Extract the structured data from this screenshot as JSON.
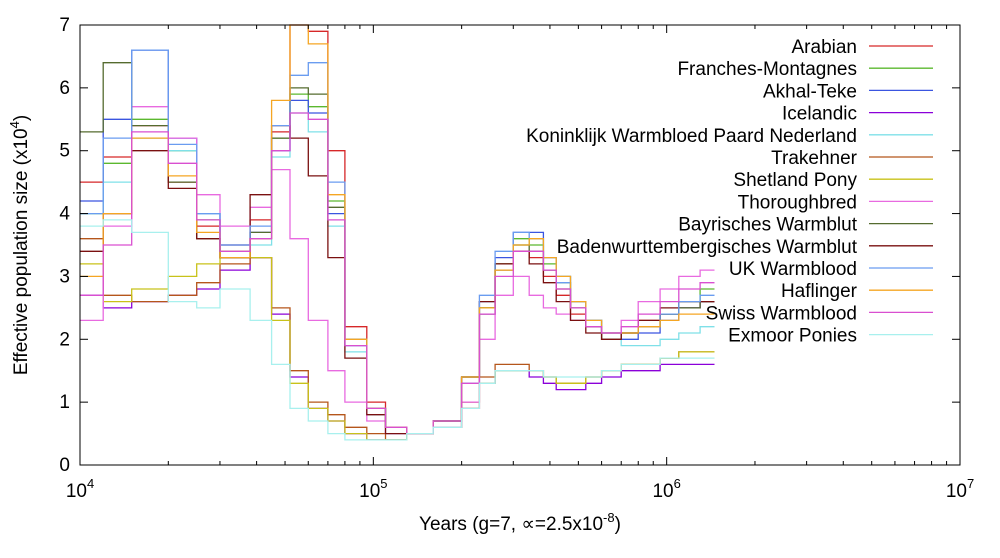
{
  "chart_data": {
    "type": "line",
    "title": "",
    "xlabel": "Years (g=7, ∝=2.5x10",
    "xlabel_exp": "-8",
    "xlabel_tail": ")",
    "ylabel": "Effective population size (x10",
    "ylabel_exp": "4",
    "ylabel_tail": ")",
    "x_scale": "log",
    "xlim": [
      10000,
      10000000
    ],
    "ylim": [
      0,
      7
    ],
    "x_ticks": [
      {
        "value": 10000,
        "base": "10",
        "exp": "4"
      },
      {
        "value": 100000,
        "base": "10",
        "exp": "5"
      },
      {
        "value": 1000000,
        "base": "10",
        "exp": "6"
      },
      {
        "value": 10000000,
        "base": "10",
        "exp": "7"
      }
    ],
    "y_ticks": [
      0,
      1,
      2,
      3,
      4,
      5,
      6,
      7
    ],
    "legend_position": "top-right",
    "grid": false,
    "series": [
      {
        "name": "Arabian",
        "color": "#d62728",
        "x": [
          10000,
          12000,
          15000,
          20000,
          25000,
          30000,
          38000,
          45000,
          52000,
          60000,
          70000,
          80000,
          95000,
          110000,
          130000,
          160000,
          200000,
          230000,
          260000,
          300000,
          340000,
          380000,
          420000,
          470000,
          530000,
          600000,
          700000,
          800000,
          950000,
          1100000,
          1300000
        ],
        "y": [
          4.5,
          4.9,
          5.4,
          4.5,
          3.8,
          3.5,
          3.9,
          5.3,
          7.0,
          6.9,
          5.0,
          2.2,
          1.0,
          0.6,
          0.5,
          0.7,
          1.4,
          2.4,
          3.1,
          3.4,
          3.3,
          3.0,
          2.7,
          2.4,
          2.2,
          2.0,
          2.1,
          2.3,
          2.4,
          2.5,
          2.6
        ]
      },
      {
        "name": "Franches-Montagnes",
        "color": "#5bb82f",
        "x": [
          10000,
          12000,
          15000,
          20000,
          25000,
          30000,
          38000,
          45000,
          52000,
          60000,
          70000,
          80000,
          95000,
          110000,
          130000,
          160000,
          200000,
          230000,
          260000,
          300000,
          340000,
          380000,
          420000,
          470000,
          530000,
          600000,
          700000,
          800000,
          950000,
          1100000,
          1300000
        ],
        "y": [
          4.0,
          4.8,
          5.5,
          5.0,
          3.9,
          3.4,
          3.6,
          5.2,
          5.9,
          5.7,
          4.2,
          2.0,
          0.9,
          0.6,
          0.5,
          0.7,
          1.4,
          2.5,
          3.2,
          3.6,
          3.5,
          3.2,
          2.9,
          2.6,
          2.3,
          2.1,
          2.1,
          2.2,
          2.4,
          2.6,
          2.8
        ]
      },
      {
        "name": "Akhal-Teke",
        "color": "#3a55e0",
        "x": [
          10000,
          12000,
          15000,
          20000,
          25000,
          30000,
          38000,
          45000,
          52000,
          60000,
          70000,
          80000,
          95000,
          110000,
          130000,
          160000,
          200000,
          230000,
          260000,
          300000,
          340000,
          380000,
          420000,
          470000,
          530000,
          600000,
          700000,
          800000,
          950000,
          1100000,
          1300000
        ],
        "y": [
          4.2,
          5.5,
          6.6,
          5.2,
          4.0,
          3.5,
          3.7,
          5.0,
          5.8,
          5.6,
          4.0,
          1.9,
          0.9,
          0.6,
          0.5,
          0.7,
          1.3,
          2.6,
          3.3,
          3.7,
          3.7,
          3.3,
          3.0,
          2.6,
          2.3,
          2.1,
          2.0,
          2.1,
          2.3,
          2.5,
          2.6
        ]
      },
      {
        "name": "Icelandic",
        "color": "#8b00d9",
        "x": [
          10000,
          12000,
          15000,
          20000,
          25000,
          30000,
          38000,
          45000,
          52000,
          60000,
          70000,
          80000,
          95000,
          110000,
          130000,
          160000,
          200000,
          230000,
          260000,
          300000,
          340000,
          380000,
          420000,
          470000,
          530000,
          600000,
          700000,
          800000,
          950000,
          1100000,
          1300000
        ],
        "y": [
          2.7,
          2.5,
          2.6,
          2.7,
          2.8,
          3.1,
          3.3,
          2.4,
          1.4,
          0.9,
          0.7,
          0.5,
          0.4,
          0.4,
          0.5,
          0.6,
          0.9,
          1.3,
          1.5,
          1.5,
          1.4,
          1.3,
          1.2,
          1.2,
          1.3,
          1.4,
          1.5,
          1.5,
          1.6,
          1.6,
          1.6
        ]
      },
      {
        "name": "Koninklijk Warmbloed Paard Nederland",
        "color": "#7fe0e8",
        "x": [
          10000,
          12000,
          15000,
          20000,
          25000,
          30000,
          38000,
          45000,
          52000,
          60000,
          70000,
          80000,
          95000,
          110000,
          130000,
          160000,
          200000,
          230000,
          260000,
          300000,
          340000,
          380000,
          420000,
          470000,
          530000,
          600000,
          700000,
          800000,
          950000,
          1100000,
          1300000
        ],
        "y": [
          4.0,
          4.5,
          5.2,
          5.0,
          4.0,
          3.3,
          3.5,
          4.9,
          5.6,
          5.3,
          3.8,
          1.8,
          0.8,
          0.5,
          0.5,
          0.7,
          1.3,
          2.4,
          3.1,
          3.5,
          3.6,
          3.3,
          3.0,
          2.6,
          2.3,
          2.0,
          1.9,
          1.9,
          2.0,
          2.1,
          2.2
        ]
      },
      {
        "name": "Trakehner",
        "color": "#b5561b",
        "x": [
          10000,
          12000,
          15000,
          20000,
          25000,
          30000,
          38000,
          45000,
          52000,
          60000,
          70000,
          80000,
          95000,
          110000,
          130000,
          160000,
          200000,
          230000,
          260000,
          300000,
          340000,
          380000,
          420000,
          470000,
          530000,
          600000,
          700000,
          800000,
          950000,
          1100000,
          1300000
        ],
        "y": [
          3.6,
          2.7,
          2.6,
          2.7,
          2.9,
          3.2,
          3.3,
          2.5,
          1.5,
          1.0,
          0.8,
          0.6,
          0.5,
          0.4,
          0.5,
          0.6,
          1.0,
          1.4,
          1.6,
          1.6,
          1.5,
          1.4,
          1.3,
          1.3,
          1.4,
          1.5,
          1.6,
          1.6,
          1.7,
          1.8,
          1.8
        ]
      },
      {
        "name": "Shetland Pony",
        "color": "#c8c21a",
        "x": [
          10000,
          12000,
          15000,
          20000,
          25000,
          30000,
          38000,
          45000,
          52000,
          60000,
          70000,
          80000,
          95000,
          110000,
          130000,
          160000,
          200000,
          230000,
          260000,
          300000,
          340000,
          380000,
          420000,
          470000,
          530000,
          600000,
          700000,
          800000,
          950000,
          1100000,
          1300000
        ],
        "y": [
          3.2,
          2.6,
          2.8,
          3.0,
          3.2,
          3.4,
          3.3,
          2.3,
          1.3,
          0.9,
          0.7,
          0.5,
          0.4,
          0.4,
          0.5,
          0.6,
          0.9,
          1.3,
          1.5,
          1.5,
          1.5,
          1.4,
          1.3,
          1.3,
          1.4,
          1.5,
          1.6,
          1.6,
          1.7,
          1.8,
          1.8
        ]
      },
      {
        "name": "Thoroughbred",
        "color": "#e86ae0",
        "x": [
          10000,
          12000,
          15000,
          20000,
          25000,
          30000,
          38000,
          45000,
          52000,
          60000,
          70000,
          80000,
          95000,
          110000,
          130000,
          160000,
          200000,
          230000,
          260000,
          300000,
          340000,
          380000,
          420000,
          470000,
          530000,
          600000,
          700000,
          800000,
          950000,
          1100000,
          1300000
        ],
        "y": [
          2.3,
          3.8,
          5.7,
          5.2,
          4.3,
          3.8,
          4.1,
          4.7,
          3.6,
          2.3,
          1.5,
          1.0,
          0.7,
          0.5,
          0.5,
          0.6,
          1.0,
          2.0,
          2.7,
          3.0,
          2.7,
          2.5,
          2.4,
          2.3,
          2.2,
          2.1,
          2.3,
          2.6,
          2.8,
          3.0,
          3.1
        ]
      },
      {
        "name": "Bayrisches Warmblut",
        "color": "#556b2f",
        "x": [
          10000,
          12000,
          15000,
          20000,
          25000,
          30000,
          38000,
          45000,
          52000,
          60000,
          70000,
          80000,
          95000,
          110000,
          130000,
          160000,
          200000,
          230000,
          260000,
          300000,
          340000,
          380000,
          420000,
          470000,
          530000,
          600000,
          700000,
          800000,
          950000,
          1100000,
          1300000
        ],
        "y": [
          5.3,
          6.4,
          5.4,
          4.5,
          3.6,
          3.3,
          3.7,
          5.2,
          6.0,
          5.9,
          4.1,
          2.0,
          0.9,
          0.6,
          0.5,
          0.7,
          1.4,
          2.5,
          3.2,
          3.5,
          3.4,
          3.1,
          2.8,
          2.5,
          2.2,
          2.0,
          2.1,
          2.2,
          2.4,
          2.5,
          2.6
        ]
      },
      {
        "name": "Badenwurttembergisches Warmblut",
        "color": "#7a1010",
        "x": [
          10000,
          12000,
          15000,
          20000,
          25000,
          30000,
          38000,
          45000,
          52000,
          60000,
          70000,
          80000,
          95000,
          110000,
          130000,
          160000,
          200000,
          230000,
          260000,
          300000,
          340000,
          380000,
          420000,
          470000,
          530000,
          600000,
          700000,
          800000,
          950000,
          1100000,
          1300000
        ],
        "y": [
          3.4,
          4.0,
          5.0,
          4.4,
          3.6,
          3.3,
          4.3,
          5.4,
          5.2,
          4.6,
          3.3,
          1.7,
          0.8,
          0.5,
          0.5,
          0.7,
          1.4,
          2.6,
          3.2,
          3.4,
          3.2,
          2.9,
          2.6,
          2.3,
          2.1,
          2.0,
          2.1,
          2.3,
          2.5,
          2.6,
          2.6
        ]
      },
      {
        "name": "UK Warmblood",
        "color": "#6a9cf0",
        "x": [
          10000,
          12000,
          15000,
          20000,
          25000,
          30000,
          38000,
          45000,
          52000,
          60000,
          70000,
          80000,
          95000,
          110000,
          130000,
          160000,
          200000,
          230000,
          260000,
          300000,
          340000,
          380000,
          420000,
          470000,
          530000,
          600000,
          700000,
          800000,
          950000,
          1100000,
          1300000
        ],
        "y": [
          4.0,
          5.2,
          6.6,
          5.1,
          4.0,
          3.5,
          3.8,
          5.4,
          6.2,
          6.4,
          4.5,
          2.0,
          0.9,
          0.6,
          0.5,
          0.7,
          1.4,
          2.7,
          3.4,
          3.7,
          3.6,
          3.3,
          2.9,
          2.6,
          2.3,
          2.1,
          2.1,
          2.2,
          2.4,
          2.6,
          2.7
        ]
      },
      {
        "name": "Haflinger",
        "color": "#f5a623",
        "x": [
          10000,
          12000,
          15000,
          20000,
          25000,
          30000,
          38000,
          45000,
          52000,
          60000,
          70000,
          80000,
          95000,
          110000,
          130000,
          160000,
          200000,
          230000,
          260000,
          300000,
          340000,
          380000,
          420000,
          470000,
          530000,
          600000,
          700000,
          800000,
          950000,
          1100000,
          1300000
        ],
        "y": [
          3.0,
          4.0,
          5.2,
          4.6,
          3.7,
          3.3,
          3.6,
          5.8,
          7.0,
          6.7,
          4.3,
          2.0,
          0.9,
          0.6,
          0.5,
          0.7,
          1.4,
          2.5,
          3.1,
          3.5,
          3.6,
          3.3,
          3.0,
          2.6,
          2.3,
          2.1,
          2.1,
          2.2,
          2.3,
          2.4,
          2.4
        ]
      },
      {
        "name": "Swiss Warmblood",
        "color": "#d94fd0",
        "x": [
          10000,
          12000,
          15000,
          20000,
          25000,
          30000,
          38000,
          45000,
          52000,
          60000,
          70000,
          80000,
          95000,
          110000,
          130000,
          160000,
          200000,
          230000,
          260000,
          300000,
          340000,
          380000,
          420000,
          470000,
          530000,
          600000,
          700000,
          800000,
          950000,
          1100000,
          1300000
        ],
        "y": [
          2.7,
          3.5,
          5.3,
          4.8,
          3.9,
          3.4,
          3.6,
          5.0,
          5.6,
          5.5,
          3.9,
          1.9,
          0.9,
          0.6,
          0.5,
          0.7,
          1.3,
          2.4,
          3.0,
          3.4,
          3.4,
          3.1,
          2.8,
          2.5,
          2.2,
          2.1,
          2.2,
          2.4,
          2.6,
          2.8,
          2.9
        ]
      },
      {
        "name": "Exmoor Ponies",
        "color": "#a8f0ee",
        "x": [
          10000,
          12000,
          15000,
          20000,
          25000,
          30000,
          38000,
          45000,
          52000,
          60000,
          70000,
          80000,
          95000,
          110000,
          130000,
          160000,
          200000,
          230000,
          260000,
          300000,
          340000,
          380000,
          420000,
          470000,
          530000,
          600000,
          700000,
          800000,
          950000,
          1100000,
          1300000
        ],
        "y": [
          3.8,
          3.9,
          3.7,
          2.6,
          2.5,
          2.8,
          2.3,
          1.6,
          0.9,
          0.7,
          0.5,
          0.4,
          0.4,
          0.4,
          0.5,
          0.6,
          0.9,
          1.3,
          1.5,
          1.5,
          1.5,
          1.4,
          1.4,
          1.4,
          1.4,
          1.5,
          1.6,
          1.6,
          1.7,
          1.7,
          1.7
        ]
      }
    ]
  }
}
